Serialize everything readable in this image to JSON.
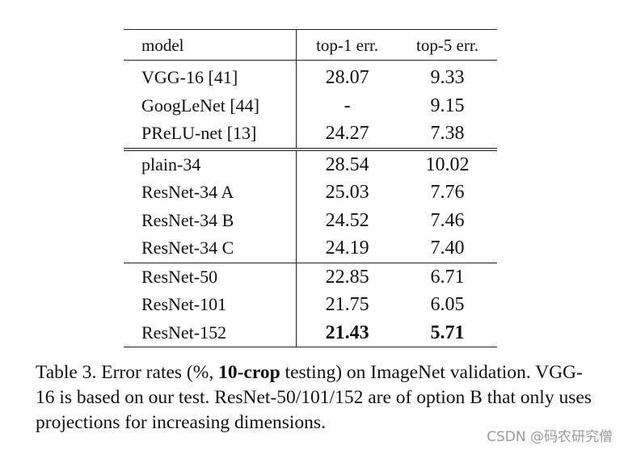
{
  "table": {
    "headers": {
      "model": "model",
      "top1": "top-1 err.",
      "top5": "top-5 err."
    },
    "group1": [
      {
        "model": "VGG-16 [41]",
        "top1": "28.07",
        "top5": "9.33"
      },
      {
        "model": "GoogLeNet [44]",
        "top1": "-",
        "top5": "9.15"
      },
      {
        "model": "PReLU-net [13]",
        "top1": "24.27",
        "top5": "7.38"
      }
    ],
    "group2": [
      {
        "model": "plain-34",
        "top1": "28.54",
        "top5": "10.02"
      },
      {
        "model": "ResNet-34 A",
        "top1": "25.03",
        "top5": "7.76"
      },
      {
        "model": "ResNet-34 B",
        "top1": "24.52",
        "top5": "7.46"
      },
      {
        "model": "ResNet-34 C",
        "top1": "24.19",
        "top5": "7.40"
      }
    ],
    "group3": [
      {
        "model": "ResNet-50",
        "top1": "22.85",
        "top5": "6.71"
      },
      {
        "model": "ResNet-101",
        "top1": "21.75",
        "top5": "6.05"
      },
      {
        "model": "ResNet-152",
        "top1": "21.43",
        "top5": "5.71"
      }
    ]
  },
  "caption": {
    "part1": "Table 3. Error rates (%, ",
    "bold": "10-crop",
    "part2": " testing) on ImageNet validation. VGG-16 is based on our test. ResNet-50/101/152 are of option B that only uses projections for increasing dimensions."
  },
  "watermark": "CSDN @码农研究僧"
}
